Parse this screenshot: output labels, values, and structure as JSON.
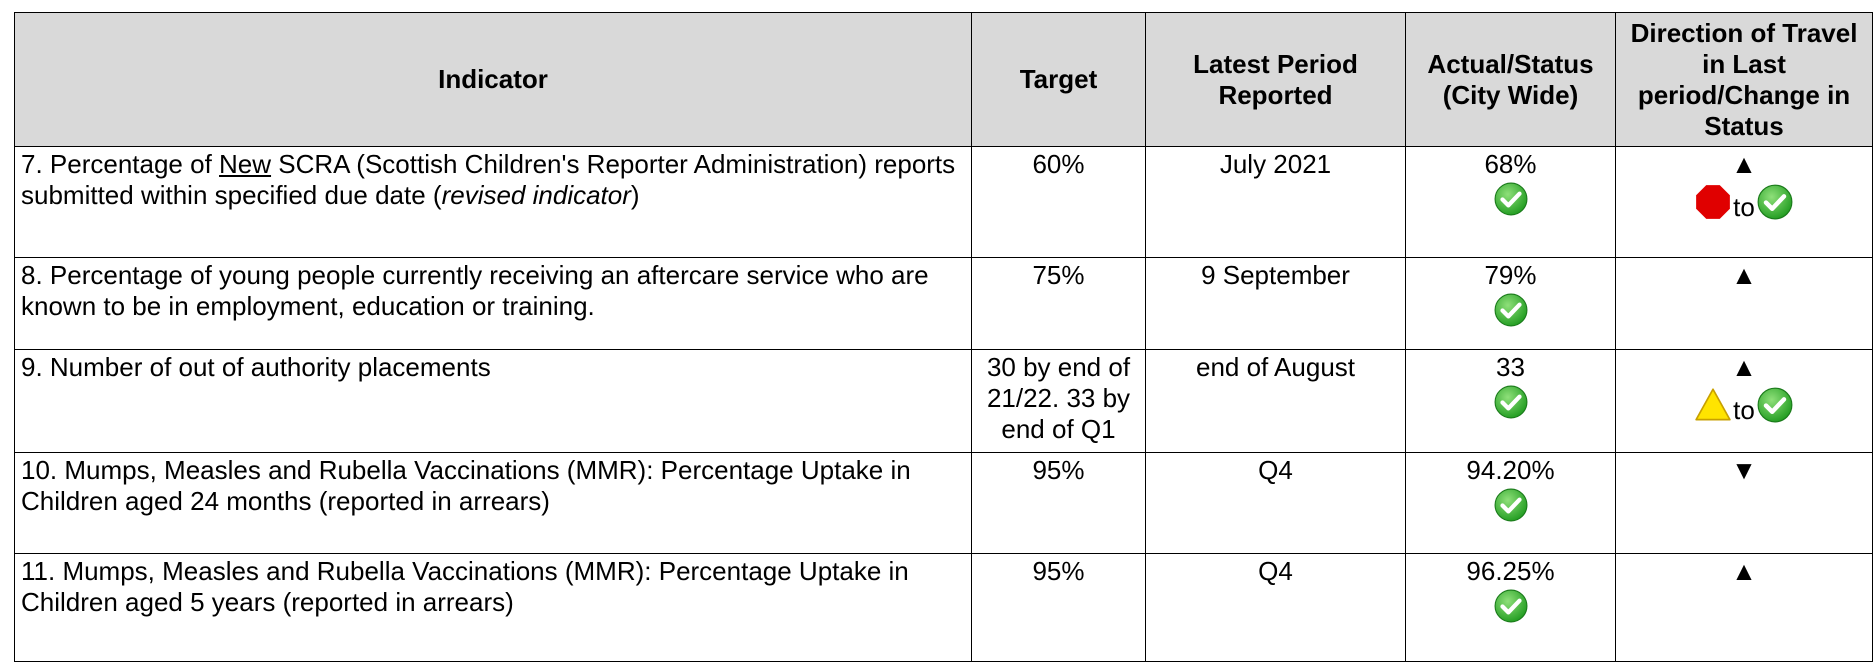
{
  "table": {
    "header": [
      "Indicator",
      "Target",
      "Latest Period Reported",
      "Actual/Status (City Wide)",
      "Direction of Travel in Last period/Change in Status"
    ],
    "rows": [
      {
        "indicator": [
          "7. Percentage of ",
          "New",
          " SCRA (Scottish Children's Reporter Administration) reports submitted within specified due date (",
          "revised indicator",
          ")"
        ],
        "target": "60%",
        "period": "July 2021",
        "actual": "68%",
        "direction": "▲",
        "change_to": "to"
      },
      {
        "indicator": [
          "8. Percentage of young people currently receiving an aftercare service who are known to be in employment, education or training."
        ],
        "target": "75%",
        "period": "9 September",
        "actual": "79%",
        "direction": "▲"
      },
      {
        "indicator": [
          "9. Number of out of authority placements"
        ],
        "target": "30 by end of 21/22. 33 by end of Q1",
        "period": "end of August",
        "actual": "33",
        "direction": "▲",
        "change_to": "to"
      },
      {
        "indicator": [
          "10. Mumps, Measles and Rubella Vaccinations (MMR): Percentage Uptake in Children aged 24 months (reported in arrears)"
        ],
        "target": "95%",
        "period": "Q4",
        "actual": "94.20%",
        "direction": "▼"
      },
      {
        "indicator": [
          "11. Mumps, Measles and Rubella Vaccinations (MMR): Percentage Uptake in Children aged 5 years (reported in arrears)"
        ],
        "target": "95%",
        "period": "Q4",
        "actual": "96.25%",
        "direction": "▲"
      }
    ]
  }
}
